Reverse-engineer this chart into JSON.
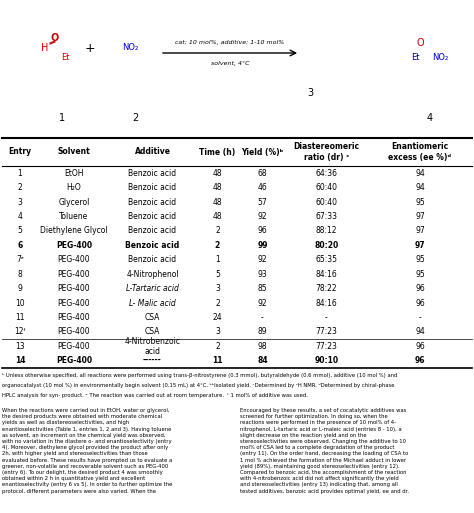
{
  "col_headers": [
    "Entry",
    "Solvent",
    "Additive",
    "Time (h)",
    "Yield (%)ᵇ",
    "Diastereomeric\nratio (dr) ᶜ",
    "Enantiomeric\nexcess (ee %)ᵈ"
  ],
  "rows": [
    [
      "1",
      "EtOH",
      "Benzoic acid",
      "48",
      "68",
      "64:36",
      "94",
      false
    ],
    [
      "2",
      "H₂O",
      "Benzoic acid",
      "48",
      "46",
      "60:40",
      "94",
      false
    ],
    [
      "3",
      "Glycerol",
      "Benzoic acid",
      "48",
      "57",
      "60:40",
      "95",
      false
    ],
    [
      "4",
      "Toluene",
      "Benzoic acid",
      "48",
      "92",
      "67:33",
      "97",
      false
    ],
    [
      "5",
      "Diethylene Glycol",
      "Benzoic acid",
      "2",
      "96",
      "88:12",
      "97",
      false
    ],
    [
      "6",
      "PEG-400",
      "Benzoic acid",
      "2",
      "99",
      "80:20",
      "97",
      true
    ],
    [
      "7ᵉ",
      "PEG-400",
      "Benzoic acid",
      "1",
      "92",
      "65:35",
      "95",
      false
    ],
    [
      "8",
      "PEG-400",
      "4-Nitrophenol",
      "5",
      "93",
      "84:16",
      "95",
      false
    ],
    [
      "9",
      "PEG-400",
      "L-Tartaric acid",
      "3",
      "85",
      "78:22",
      "96",
      false
    ],
    [
      "10",
      "PEG-400",
      "L- Malic acid",
      "2",
      "92",
      "84:16",
      "96",
      false
    ],
    [
      "11",
      "PEG-400",
      "CSA",
      "24",
      "-",
      "-",
      "-",
      false
    ],
    [
      "12ᶠ",
      "PEG-400",
      "CSA",
      "3",
      "89",
      "77:23",
      "94",
      false
    ],
    [
      "13",
      "PEG-400",
      "4-Nitrobenzoic\nacid",
      "2",
      "98",
      "77:23",
      "96",
      false
    ],
    [
      "14",
      "PEG-400",
      "------",
      "11",
      "84",
      "90:10",
      "96",
      true
    ]
  ],
  "footnote1": "ᵇ Unless otherwise specified, all reactions were performed using trans-β-nitrostyrene (0.3 mmol), butyraldehyde (0.6 mmol), additive (10 mol %) and",
  "footnote2": "organocatalyst (10 mol %) in environmentally begin solvent (0.15 mL) at 4°C. ᵇᵇIsolated yield. ᶜDetermined by ¹H NMR. ᵈDetermined by chiral-phase",
  "footnote3": "HPLC analysis for syn- product. ᵉ The reaction was carried out at room temperature.  ᶠ 1 mol% of additive was used.",
  "chem_reaction_line1": "cat; 10 mol%, additive; 1-10 mol%",
  "chem_reaction_line2": "solvent, 4°C",
  "label1": "1",
  "label2": "2",
  "label3": "3",
  "label4": "4",
  "bg_color": "#ffffff"
}
